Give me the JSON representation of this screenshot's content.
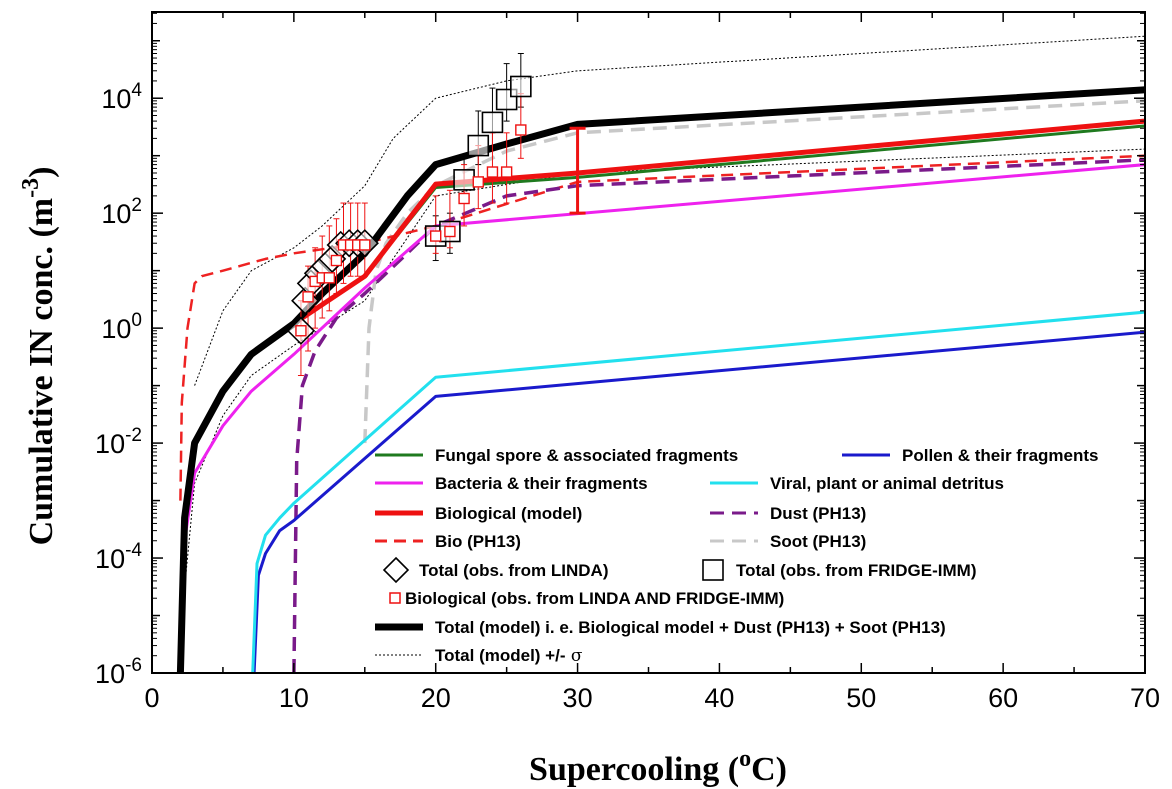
{
  "chart_data": {
    "type": "line",
    "xlabel": "Supercooling (",
    "xlabel_sup": "o",
    "xlabel_end": "C)",
    "ylabel": "Cumulative IN conc. (m",
    "ylabel_sup": "-3",
    "ylabel_end": ")",
    "xlim": [
      0,
      70
    ],
    "ylim_log10": [
      -6,
      5.5
    ],
    "y_scale": "log",
    "x_ticks": [
      0,
      10,
      20,
      30,
      40,
      50,
      60,
      70
    ],
    "x_tick_labels": [
      "0",
      "10",
      "20",
      "30",
      "40",
      "50",
      "60",
      "70"
    ],
    "y_tick_exponents": [
      -6,
      -4,
      -2,
      0,
      2,
      4
    ],
    "y_tick_base": "10",
    "legend_placement": "lower-right",
    "series": [
      {
        "name": "Fungal spore & associated fragments",
        "color": "#1f7a1f",
        "style": "solid",
        "x": [
          2,
          2.3,
          3,
          5,
          7,
          10,
          15,
          20,
          30,
          70
        ],
        "y": [
          1e-06,
          0.0005,
          0.01,
          0.08,
          0.35,
          1.2,
          8,
          280,
          420,
          3300
        ]
      },
      {
        "name": "Pollen & their fragments",
        "color": "#1a1acc",
        "style": "solid",
        "x": [
          7.2,
          7.5,
          8,
          9,
          10,
          20,
          70
        ],
        "y": [
          1e-06,
          5e-05,
          0.00012,
          0.0003,
          0.00045,
          0.065,
          0.85
        ]
      },
      {
        "name": "Bacteria & their fragments",
        "color": "#ee22ee",
        "style": "solid",
        "x": [
          2,
          2.3,
          3,
          5,
          7,
          10,
          15,
          20,
          70
        ],
        "y": [
          1e-06,
          0.0002,
          0.003,
          0.02,
          0.08,
          0.35,
          5,
          60,
          700
        ]
      },
      {
        "name": "Viral, plant or animal detritus",
        "color": "#22e0ee",
        "style": "solid",
        "x": [
          7.1,
          7.4,
          8,
          9,
          10,
          20,
          70
        ],
        "y": [
          1e-06,
          8e-05,
          0.00025,
          0.0005,
          0.0009,
          0.14,
          1.9
        ]
      },
      {
        "name": "Biological (model)",
        "color": "#ee1111",
        "style": "solid-thick",
        "x": [
          2,
          2.3,
          3,
          5,
          7,
          10,
          15,
          20,
          30,
          70
        ],
        "y": [
          1e-06,
          0.0005,
          0.01,
          0.08,
          0.35,
          1.2,
          8,
          320,
          500,
          4000
        ]
      },
      {
        "name": "Dust (PH13)",
        "color": "#7a1a8a",
        "style": "dash",
        "x": [
          10,
          10.2,
          10.6,
          11.5,
          13,
          15,
          18,
          20,
          25,
          30,
          70
        ],
        "y": [
          1e-06,
          0.005,
          0.1,
          0.4,
          1.5,
          4,
          20,
          60,
          200,
          300,
          850
        ]
      },
      {
        "name": "Bio (PH13)",
        "color": "#ee2222",
        "style": "dash-thin",
        "x": [
          2,
          2.1,
          2.5,
          3,
          3.5,
          5,
          8,
          10,
          15,
          20,
          30,
          70
        ],
        "y": [
          0.001,
          0.05,
          1,
          6,
          8,
          10,
          16,
          20,
          30,
          60,
          350,
          1000
        ]
      },
      {
        "name": "Soot (PH13)",
        "color": "#c8c8c8",
        "style": "dash",
        "x": [
          15,
          15.3,
          15.8,
          16.5,
          18,
          20,
          25,
          30,
          70
        ],
        "y": [
          0.01,
          1,
          10,
          30,
          100,
          300,
          1200,
          2500,
          9000
        ]
      },
      {
        "name": "Total (model) i. e. Biological model + Dust (PH13) + Soot (PH13)",
        "color": "#000000",
        "style": "solid-heavy",
        "x": [
          2,
          2.3,
          3,
          5,
          7,
          10,
          12,
          15,
          18,
          20,
          25,
          30,
          70
        ],
        "y": [
          1e-06,
          0.0005,
          0.01,
          0.08,
          0.35,
          1.2,
          4,
          20,
          200,
          700,
          1600,
          3500,
          14000
        ]
      },
      {
        "name": "Total (model) +/- σ",
        "color": "#000000",
        "style": "dot",
        "x": [
          3,
          5,
          7,
          10,
          12,
          15,
          17,
          20,
          25,
          30,
          70
        ],
        "y": [
          0.1,
          2,
          10,
          25,
          60,
          300,
          2000,
          10000,
          20000,
          30000,
          120000
        ]
      },
      {
        "name": "",
        "color": "#000000",
        "style": "dot",
        "x": [
          2.1,
          2.5,
          3,
          5,
          7,
          10,
          15,
          20,
          30,
          70
        ],
        "y": [
          1e-05,
          0.0001,
          0.002,
          0.03,
          0.15,
          0.5,
          3,
          200,
          500,
          1300
        ]
      }
    ],
    "obs_linda": {
      "name": "Total (obs. from LINDA)",
      "x": [
        10.5,
        10.8,
        11.2,
        11.7,
        12.2,
        12.7,
        13.3,
        13.9,
        14.5,
        15.0
      ],
      "y": [
        0.9,
        3,
        6,
        9,
        12,
        16,
        28,
        30,
        30,
        30
      ]
    },
    "obs_fridge": {
      "name": "Total (obs. from FRIDGE-IMM)",
      "x": [
        20,
        21,
        22,
        23,
        24,
        25,
        26
      ],
      "y": [
        40,
        48,
        380,
        1500,
        3800,
        9500,
        16000
      ],
      "err_up": [
        90,
        100,
        900,
        6000,
        15000,
        40000,
        60000
      ],
      "err_low": [
        15,
        20,
        200,
        700,
        1500,
        4000,
        7000
      ]
    },
    "obs_bio": {
      "name": "Biological (obs. from LINDA AND FRIDGE-IMM)",
      "x": [
        10.5,
        11.0,
        11.5,
        12.0,
        12.5,
        13.0,
        13.5,
        14.0,
        14.5,
        15.0,
        20.0,
        21.0,
        22.0,
        23.0,
        24.0,
        25.0,
        26.0
      ],
      "y": [
        0.9,
        3.5,
        6.5,
        7.5,
        7.5,
        15,
        28,
        28,
        28,
        28,
        40,
        48,
        180,
        350,
        520,
        520,
        2800
      ],
      "err_up": [
        3,
        12,
        25,
        40,
        60,
        80,
        150,
        150,
        150,
        150,
        200,
        250,
        700,
        1500,
        2500,
        2500,
        12000
      ],
      "err_low": [
        0.15,
        0.4,
        1,
        1.5,
        2,
        4,
        6,
        8,
        8,
        8,
        20,
        25,
        60,
        120,
        150,
        150,
        900
      ]
    },
    "range_bar": {
      "x": 30,
      "y_low": 100,
      "y_high": 3000,
      "color": "#ee1111"
    }
  },
  "legend": [
    {
      "label": "Fungal spore & associated fragments",
      "marker": "line",
      "color": "#1f7a1f"
    },
    {
      "label": "Pollen & their fragments",
      "marker": "line",
      "color": "#1a1acc"
    },
    {
      "label": "Bacteria & their fragments",
      "marker": "line",
      "color": "#ee22ee"
    },
    {
      "label": "Viral, plant or animal detritus",
      "marker": "line",
      "color": "#22e0ee"
    },
    {
      "label": "Biological (model)",
      "marker": "line-thick",
      "color": "#ee1111"
    },
    {
      "label": "Dust (PH13)",
      "marker": "dash",
      "color": "#7a1a8a"
    },
    {
      "label": "Bio (PH13)",
      "marker": "dash-thin",
      "color": "#ee2222"
    },
    {
      "label": "Soot (PH13)",
      "marker": "dash",
      "color": "#c8c8c8"
    },
    {
      "label": "Total (obs. from LINDA)",
      "marker": "diamond",
      "color": "#000000"
    },
    {
      "label": "Total (obs. from FRIDGE-IMM)",
      "marker": "square",
      "color": "#000000"
    },
    {
      "label": "Biological (obs. from LINDA AND FRIDGE-IMM)",
      "marker": "square-small",
      "color": "#ee1111"
    },
    {
      "label": "Total (model) i. e. Biological model + Dust (PH13) + Soot (PH13)",
      "marker": "line-heavy",
      "color": "#000000"
    },
    {
      "label": "Total (model) +/-",
      "label_sigma": "σ",
      "marker": "dot",
      "color": "#000000"
    }
  ]
}
